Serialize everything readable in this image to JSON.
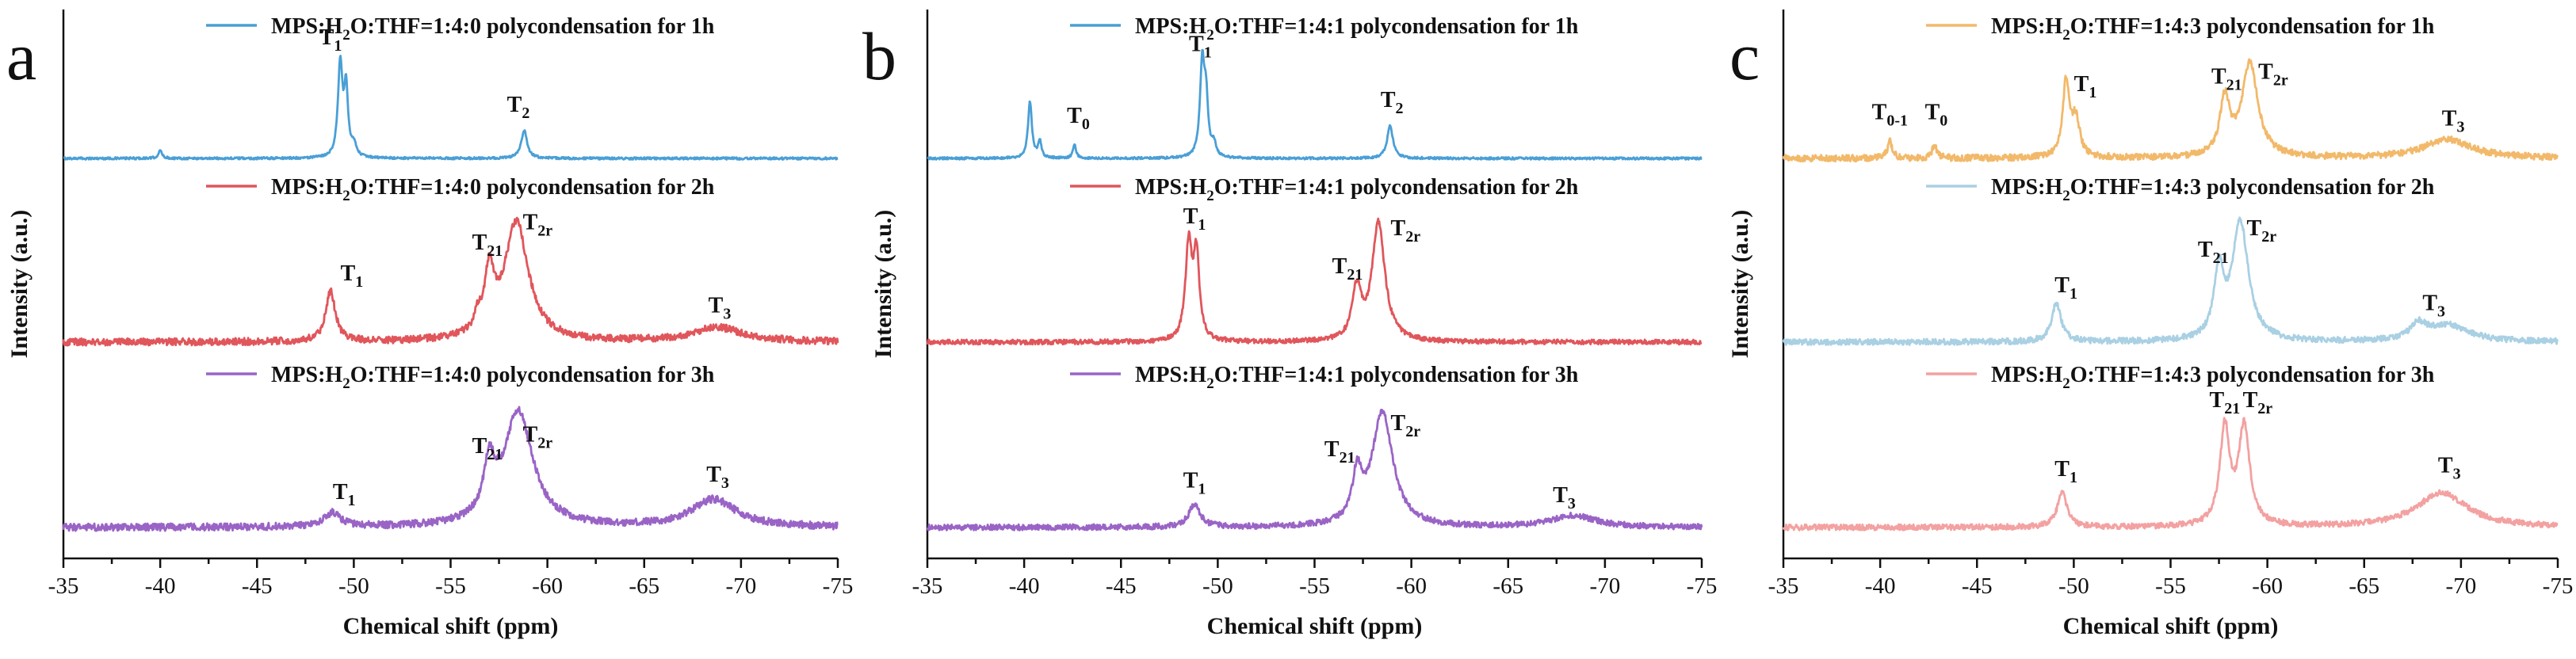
{
  "chart_data": [
    {
      "type": "line",
      "panel_label": "a",
      "xlabel": "Chemical shift (ppm)",
      "ylabel": "Intensity (a.u.)",
      "xlim": [
        -35,
        -75
      ],
      "xticks": [
        -35,
        -40,
        -45,
        -50,
        -55,
        -60,
        -65,
        -70,
        -75
      ],
      "xtick_labels": [
        "-35",
        "-40",
        "-45",
        "-50",
        "-55",
        "-60",
        "-65",
        "-70",
        "-75"
      ],
      "series": [
        {
          "name": "MPS:H2O:THF=1:4:0 polycondensation for 1h",
          "legend": {
            "pre": "MPS:H",
            "sub": "2",
            "post": "O:THF=1:4:0 polycondensation for 1h"
          },
          "color": "#4a9fd6",
          "noise": 0.012,
          "peaks": [
            {
              "x": -40.0,
              "h": 0.08,
              "w": 0.12
            },
            {
              "x": -49.3,
              "h": 1.0,
              "w": 0.14
            },
            {
              "x": -49.6,
              "h": 0.7,
              "w": 0.12
            },
            {
              "x": -50.0,
              "h": 0.12,
              "w": 0.15
            },
            {
              "x": -58.8,
              "h": 0.3,
              "w": 0.18
            }
          ],
          "annotations": [
            {
              "label": "T",
              "sub": "1",
              "x": -48.8,
              "y": 1.22
            },
            {
              "label": "T",
              "sub": "2",
              "x": -58.5,
              "y": 0.5
            }
          ]
        },
        {
          "name": "MPS:H2O:THF=1:4:0 polycondensation for 2h",
          "legend": {
            "pre": "MPS:H",
            "sub": "2",
            "post": "O:THF=1:4:0 polycondensation for 2h"
          },
          "color": "#e0565b",
          "noise": 0.03,
          "peaks": [
            {
              "x": -48.8,
              "h": 0.42,
              "w": 0.3
            },
            {
              "x": -56.4,
              "h": 0.12,
              "w": 0.2
            },
            {
              "x": -57.0,
              "h": 0.5,
              "w": 0.3
            },
            {
              "x": -58.4,
              "h": 1.0,
              "w": 0.75
            },
            {
              "x": -68.8,
              "h": 0.12,
              "w": 1.6
            }
          ],
          "annotations": [
            {
              "label": "T",
              "sub": "1",
              "x": -49.9,
              "y": 0.52
            },
            {
              "label": "T",
              "sub": "21",
              "x": -56.9,
              "y": 0.78
            },
            {
              "label": "T",
              "sub": "2r",
              "x": -59.5,
              "y": 0.95
            },
            {
              "label": "T",
              "sub": "3",
              "x": -68.9,
              "y": 0.25
            }
          ]
        },
        {
          "name": "MPS:H2O:THF=1:4:0 polycondensation for 3h",
          "legend": {
            "pre": "MPS:H",
            "sub": "2",
            "post": "O:THF=1:4:0 polycondensation for 3h"
          },
          "color": "#9a64c6",
          "noise": 0.032,
          "peaks": [
            {
              "x": -48.9,
              "h": 0.12,
              "w": 0.5
            },
            {
              "x": -57.0,
              "h": 0.45,
              "w": 0.35
            },
            {
              "x": -58.5,
              "h": 1.0,
              "w": 0.9
            },
            {
              "x": -68.6,
              "h": 0.24,
              "w": 1.4
            }
          ],
          "annotations": [
            {
              "label": "T",
              "sub": "1",
              "x": -49.5,
              "y": 0.25
            },
            {
              "label": "T",
              "sub": "21",
              "x": -56.9,
              "y": 0.65
            },
            {
              "label": "T",
              "sub": "2r",
              "x": -59.5,
              "y": 0.75
            },
            {
              "label": "T",
              "sub": "3",
              "x": -68.8,
              "y": 0.4
            }
          ]
        }
      ]
    },
    {
      "type": "line",
      "panel_label": "b",
      "xlabel": "Chemical shift (ppm)",
      "ylabel": "Intensity (a.u.)",
      "xlim": [
        -35,
        -75
      ],
      "xticks": [
        -35,
        -40,
        -45,
        -50,
        -55,
        -60,
        -65,
        -70,
        -75
      ],
      "xtick_labels": [
        "-35",
        "-40",
        "-45",
        "-50",
        "-55",
        "-60",
        "-65",
        "-70",
        "-75"
      ],
      "series": [
        {
          "name": "MPS:H2O:THF=1:4:1 polycondensation for 1h",
          "legend": {
            "pre": "MPS:H",
            "sub": "2",
            "post": "O:THF=1:4:1 polycondensation for 1h"
          },
          "color": "#4a9fd6",
          "noise": 0.012,
          "peaks": [
            {
              "x": -40.3,
              "h": 0.6,
              "w": 0.12
            },
            {
              "x": -40.8,
              "h": 0.18,
              "w": 0.1
            },
            {
              "x": -42.6,
              "h": 0.15,
              "w": 0.1
            },
            {
              "x": -49.2,
              "h": 1.0,
              "w": 0.14
            },
            {
              "x": -49.4,
              "h": 0.55,
              "w": 0.12
            },
            {
              "x": -49.8,
              "h": 0.14,
              "w": 0.12
            },
            {
              "x": -58.9,
              "h": 0.35,
              "w": 0.18
            }
          ],
          "annotations": [
            {
              "label": "T",
              "sub": "0",
              "x": -42.8,
              "y": 0.38
            },
            {
              "label": "T",
              "sub": "1",
              "x": -49.1,
              "y": 1.15
            },
            {
              "label": "T",
              "sub": "2",
              "x": -59.0,
              "y": 0.55
            }
          ]
        },
        {
          "name": "MPS:H2O:THF=1:4:1 polycondensation for 2h",
          "legend": {
            "pre": "MPS:H",
            "sub": "2",
            "post": "O:THF=1:4:1 polycondensation for 2h"
          },
          "color": "#e0565b",
          "noise": 0.02,
          "peaks": [
            {
              "x": -48.5,
              "h": 0.8,
              "w": 0.2
            },
            {
              "x": -48.9,
              "h": 0.7,
              "w": 0.18
            },
            {
              "x": -57.1,
              "h": 0.3,
              "w": 0.25
            },
            {
              "x": -57.3,
              "h": 0.18,
              "w": 0.2
            },
            {
              "x": -58.3,
              "h": 1.0,
              "w": 0.4
            }
          ],
          "annotations": [
            {
              "label": "T",
              "sub": "1",
              "x": -48.8,
              "y": 1.0
            },
            {
              "label": "T",
              "sub": "21",
              "x": -56.7,
              "y": 0.58
            },
            {
              "label": "T",
              "sub": "2r",
              "x": -59.7,
              "y": 0.9
            }
          ]
        },
        {
          "name": "MPS:H2O:THF=1:4:1 polycondensation for 3h",
          "legend": {
            "pre": "MPS:H",
            "sub": "2",
            "post": "O:THF=1:4:1 polycondensation for 3h"
          },
          "color": "#9a64c6",
          "noise": 0.025,
          "peaks": [
            {
              "x": -48.8,
              "h": 0.2,
              "w": 0.35
            },
            {
              "x": -57.2,
              "h": 0.4,
              "w": 0.28
            },
            {
              "x": -58.5,
              "h": 1.0,
              "w": 0.65
            },
            {
              "x": -68.4,
              "h": 0.1,
              "w": 1.4
            }
          ],
          "annotations": [
            {
              "label": "T",
              "sub": "1",
              "x": -48.8,
              "y": 0.35
            },
            {
              "label": "T",
              "sub": "21",
              "x": -56.3,
              "y": 0.62
            },
            {
              "label": "T",
              "sub": "2r",
              "x": -59.7,
              "y": 0.85
            },
            {
              "label": "T",
              "sub": "3",
              "x": -67.9,
              "y": 0.22
            }
          ]
        }
      ]
    },
    {
      "type": "line",
      "panel_label": "c",
      "xlabel": "Chemical shift (ppm)",
      "ylabel": "Intensity (a.u.)",
      "xlim": [
        -35,
        -75
      ],
      "xticks": [
        -35,
        -40,
        -45,
        -50,
        -55,
        -60,
        -65,
        -70,
        -75
      ],
      "xtick_labels": [
        "-35",
        "-40",
        "-45",
        "-50",
        "-55",
        "-60",
        "-65",
        "-70",
        "-75"
      ],
      "series": [
        {
          "name": "MPS:H2O:THF=1:4:3 polycondensation for 1h",
          "legend": {
            "pre": "MPS:H",
            "sub": "2",
            "post": "O:THF=1:4:3 polycondensation for 1h"
          },
          "color": "#f2b96a",
          "noise": 0.035,
          "peaks": [
            {
              "x": -40.5,
              "h": 0.18,
              "w": 0.15
            },
            {
              "x": -42.8,
              "h": 0.14,
              "w": 0.15
            },
            {
              "x": -49.6,
              "h": 0.8,
              "w": 0.2
            },
            {
              "x": -50.1,
              "h": 0.4,
              "w": 0.25
            },
            {
              "x": -57.8,
              "h": 0.6,
              "w": 0.3
            },
            {
              "x": -59.1,
              "h": 1.0,
              "w": 0.5
            },
            {
              "x": -69.3,
              "h": 0.2,
              "w": 1.5
            }
          ],
          "annotations": [
            {
              "label": "T",
              "sub": "0-1",
              "x": -40.5,
              "y": 0.42
            },
            {
              "label": "T",
              "sub": "0",
              "x": -42.9,
              "y": 0.42
            },
            {
              "label": "T",
              "sub": "1",
              "x": -50.6,
              "y": 0.72
            },
            {
              "label": "T",
              "sub": "21",
              "x": -57.9,
              "y": 0.8
            },
            {
              "label": "T",
              "sub": "2r",
              "x": -60.3,
              "y": 0.85
            },
            {
              "label": "T",
              "sub": "3",
              "x": -69.6,
              "y": 0.35
            }
          ]
        },
        {
          "name": "MPS:H2O:THF=1:4:3 polycondensation for 2h",
          "legend": {
            "pre": "MPS:H",
            "sub": "2",
            "post": "O:THF=1:4:3 polycondensation for 2h"
          },
          "color": "#a9d0e3",
          "noise": 0.025,
          "peaks": [
            {
              "x": -49.1,
              "h": 0.32,
              "w": 0.3
            },
            {
              "x": -57.5,
              "h": 0.55,
              "w": 0.3
            },
            {
              "x": -58.6,
              "h": 1.0,
              "w": 0.5
            },
            {
              "x": -67.8,
              "h": 0.12,
              "w": 0.5
            },
            {
              "x": -69.3,
              "h": 0.14,
              "w": 1.3
            }
          ],
          "annotations": [
            {
              "label": "T",
              "sub": "1",
              "x": -49.6,
              "y": 0.42
            },
            {
              "label": "T",
              "sub": "21",
              "x": -57.2,
              "y": 0.72
            },
            {
              "label": "T",
              "sub": "2r",
              "x": -59.7,
              "y": 0.9
            },
            {
              "label": "T",
              "sub": "3",
              "x": -68.6,
              "y": 0.27
            }
          ]
        },
        {
          "name": "MPS:H2O:THF=1:4:3 polycondensation for 3h",
          "legend": {
            "pre": "MPS:H",
            "sub": "2",
            "post": "O:THF=1:4:3 polycondensation for 3h"
          },
          "color": "#f3a1a1",
          "noise": 0.025,
          "peaks": [
            {
              "x": -49.4,
              "h": 0.3,
              "w": 0.3
            },
            {
              "x": -57.8,
              "h": 0.85,
              "w": 0.3
            },
            {
              "x": -58.8,
              "h": 0.85,
              "w": 0.35
            },
            {
              "x": -69.0,
              "h": 0.3,
              "w": 1.6
            }
          ],
          "annotations": [
            {
              "label": "T",
              "sub": "1",
              "x": -49.6,
              "y": 0.45
            },
            {
              "label": "T",
              "sub": "21",
              "x": -57.8,
              "y": 1.05
            },
            {
              "label": "T",
              "sub": "2r",
              "x": -59.5,
              "y": 1.05
            },
            {
              "label": "T",
              "sub": "3",
              "x": -69.4,
              "y": 0.48
            }
          ]
        }
      ]
    }
  ]
}
